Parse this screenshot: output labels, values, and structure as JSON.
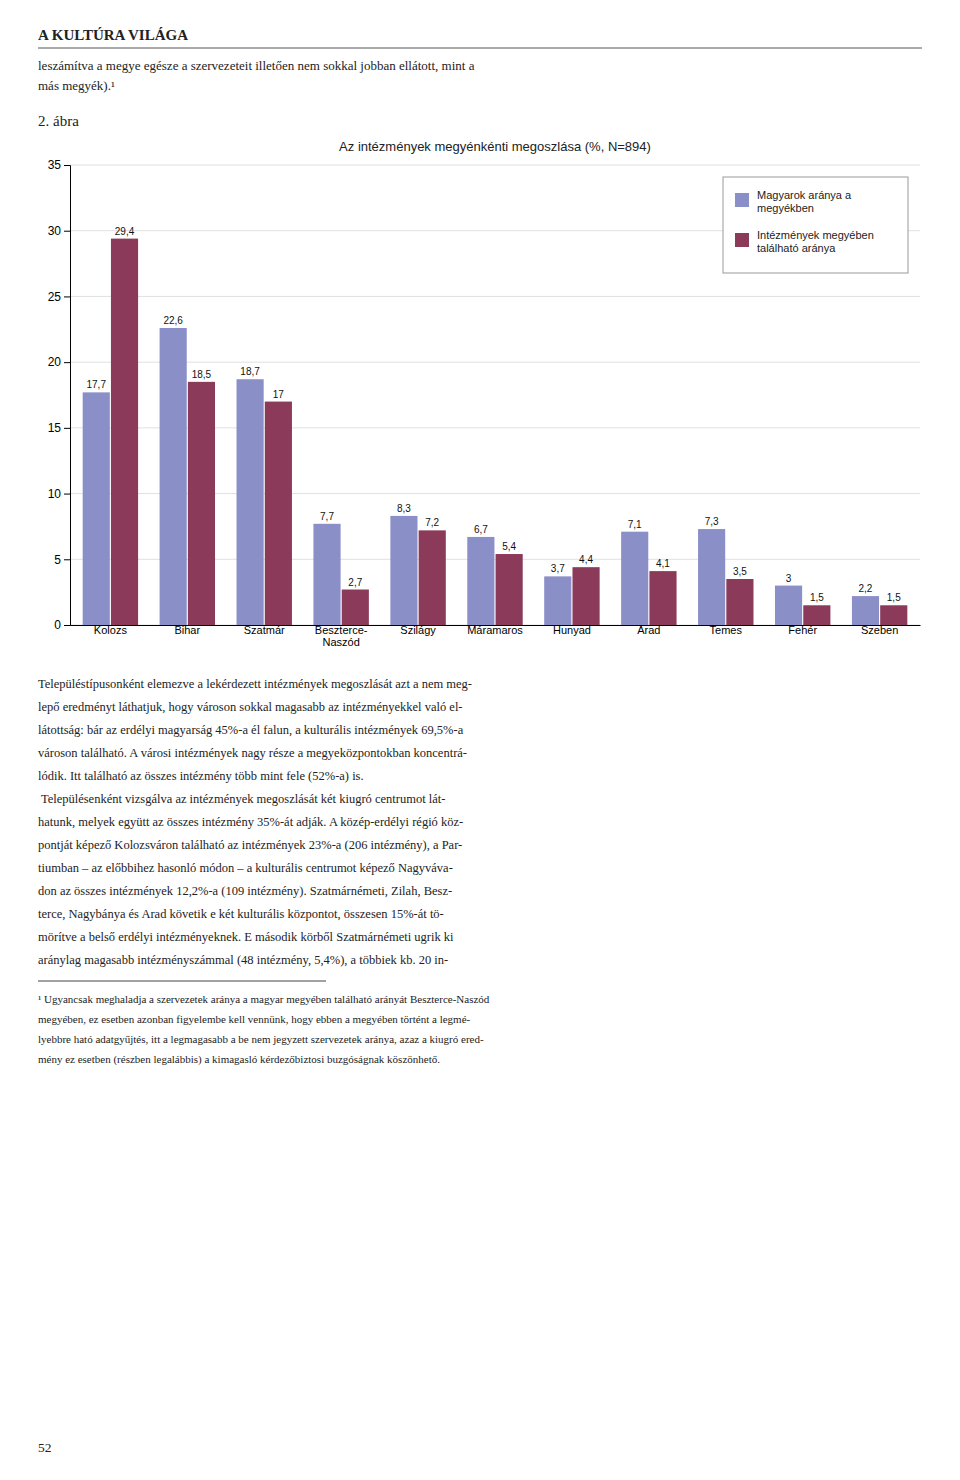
{
  "page_title": "A KULTÚRA VILÁGA",
  "intro_text": [
    "leszámítva a megye egésze a szervezeteit illetően nem sokkal jobban ellátott, mint a",
    "más megyék).¹"
  ],
  "figure_label": "2. ábra",
  "chart_data": {
    "type": "bar",
    "title": "Az intézmények megyénkénti megoszlása (%, N=894)",
    "categories": [
      "Kolozs",
      "Bihar",
      "Szatmár",
      "Beszterce-\nNaszód",
      "Szilágy",
      "Máramaros",
      "Hunyad",
      "Arad",
      "Temes",
      "Fehér",
      "Szeben"
    ],
    "series": [
      {
        "name": "Magyarok aránya a\nmegyékben",
        "color": "#8B8FC8",
        "values": [
          17.7,
          22.6,
          18.7,
          7.7,
          8.3,
          6.7,
          3.7,
          7.1,
          7.3,
          3.0,
          2.2
        ],
        "value_labels": [
          "17,7",
          "22,6",
          "18,7",
          "7,7",
          "8,3",
          "6,7",
          "3,7",
          "7,1",
          "7,3",
          "3",
          "2,2"
        ]
      },
      {
        "name": "Intézmények megyében\ntalálható aránya",
        "color": "#8B3A5A",
        "values": [
          29.4,
          18.5,
          17.0,
          2.7,
          7.2,
          5.4,
          4.4,
          4.1,
          3.5,
          1.5,
          1.5
        ],
        "value_labels": [
          "29,4",
          "18,5",
          "17",
          "2,7",
          "7,2",
          "5,4",
          "4,4",
          "4,1",
          "3,5",
          "1,5",
          "1,5"
        ]
      }
    ],
    "ylim": [
      0,
      35
    ],
    "yticks": [
      0,
      5,
      10,
      15,
      20,
      25,
      30,
      35
    ],
    "grid": true,
    "legend": "upper right",
    "data_labels": true
  },
  "body_text": [
    "Településtípusonként elemezve a lekérdezett intézmények megoszlását azt a nem meg-",
    "lepő eredményt láthatjuk, hogy városon sokkal magasabb az intézményekkel való el-",
    "látottság: bár az erdélyi magyarság 45%-a él falun, a kulturális intézmények 69,5%-a",
    "városon található. A városi intézmények nagy része a megyeközpontokban koncentrá-",
    "lódik. Itt található az összes intézmény több mint fele (52%-a) is.",
    "\tTelepülésenként vizsgálva az intézmények megoszlását két kiugró centrumot lát-",
    "hatunk, melyek együtt az összes intézmény 35%-át adják. A közép-erdélyi régió köz-",
    "pontját képező Kolozsváron található az intézmények 23%-a (206 intézmény), a Par-",
    "tiumban – az előbbihez hasonló módon – a kulturális centrumot képező Nagyváva-",
    "don az összes intézmények 12,2%-a (109 intézmény). Szatmárnémeti, Zilah, Besz-",
    "terce, Nagybánya és Arad követik e két kulturális központot, összesen 15%-át tö-",
    "mörítve a belső erdélyi intézményeknek. E második körből Szatmárnémeti ugrik ki",
    "aránylag magasabb intézményszámmal (48 intézmény, 5,4%), a többiek kb. 20 in-"
  ],
  "footnote": [
    "¹ Ugyancsak meghaladja a szervezetek aránya a magyar megyében található arányát Beszterce-Naszód",
    "megyében, ez esetben azonban figyelembe kell vennünk, hogy ebben a megyében történt a legmé-",
    "lyebbre ható adatgyűjtés, itt a legmagasabb a be nem jegyzett szervezetek aránya, azaz a kiugró ered-",
    "mény ez esetben (részben legalábbis) a kimagasló kérdezőbiztosi buzgóságnak köszönhető."
  ],
  "page_number": "52"
}
